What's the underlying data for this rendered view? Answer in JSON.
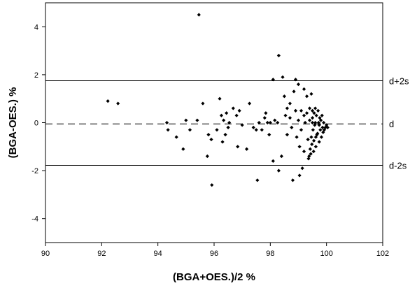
{
  "chart_data": {
    "type": "scatter",
    "title": "",
    "xlabel": "(BGA+OES.)/2 %",
    "ylabel": "(BGA-OES.) %",
    "xlim": [
      90,
      102
    ],
    "ylim": [
      -5,
      5
    ],
    "x_ticks": [
      "90",
      "92",
      "94",
      "96",
      "98",
      "100",
      "102"
    ],
    "y_ticks": [
      "4",
      "2",
      "0",
      "-2",
      "-4"
    ],
    "grid": false,
    "legend": "none",
    "reference_lines": [
      {
        "label": "d+2s",
        "y": 1.75,
        "style": "solid"
      },
      {
        "label": "d",
        "y": -0.05,
        "style": "dashed"
      },
      {
        "label": "d-2s",
        "y": -1.78,
        "style": "solid"
      }
    ],
    "marker_color": "#000000",
    "points": [
      [
        92.22,
        0.9
      ],
      [
        92.58,
        0.8
      ],
      [
        94.32,
        0.0
      ],
      [
        94.36,
        -0.3
      ],
      [
        94.66,
        -0.6
      ],
      [
        94.9,
        -1.1
      ],
      [
        95.0,
        0.1
      ],
      [
        95.14,
        -0.3
      ],
      [
        95.4,
        0.1
      ],
      [
        95.46,
        4.5
      ],
      [
        95.6,
        0.8
      ],
      [
        95.8,
        -0.5
      ],
      [
        95.76,
        -1.4
      ],
      [
        95.9,
        -0.7
      ],
      [
        95.92,
        -2.6
      ],
      [
        96.1,
        -0.3
      ],
      [
        96.2,
        1.0
      ],
      [
        96.26,
        0.3
      ],
      [
        96.3,
        -0.8
      ],
      [
        96.34,
        0.1
      ],
      [
        96.4,
        -0.5
      ],
      [
        96.44,
        0.4
      ],
      [
        96.5,
        -0.2
      ],
      [
        96.54,
        0.0
      ],
      [
        96.68,
        0.6
      ],
      [
        96.8,
        0.3
      ],
      [
        96.84,
        -1.0
      ],
      [
        96.9,
        0.5
      ],
      [
        97.0,
        -0.1
      ],
      [
        97.16,
        -1.1
      ],
      [
        97.26,
        0.8
      ],
      [
        97.4,
        -0.2
      ],
      [
        97.5,
        -0.3
      ],
      [
        97.54,
        -2.4
      ],
      [
        97.6,
        0.0
      ],
      [
        97.7,
        -0.3
      ],
      [
        97.8,
        0.2
      ],
      [
        97.84,
        0.4
      ],
      [
        97.9,
        0.0
      ],
      [
        97.96,
        -0.5
      ],
      [
        98.0,
        0.0
      ],
      [
        98.1,
        1.8
      ],
      [
        98.16,
        0.1
      ],
      [
        98.1,
        -1.6
      ],
      [
        98.3,
        2.8
      ],
      [
        98.26,
        0.0
      ],
      [
        98.3,
        -2.0
      ],
      [
        98.4,
        -1.4
      ],
      [
        98.44,
        1.9
      ],
      [
        98.5,
        1.1
      ],
      [
        98.54,
        0.3
      ],
      [
        98.6,
        0.6
      ],
      [
        98.6,
        -0.5
      ],
      [
        98.7,
        0.8
      ],
      [
        98.7,
        0.2
      ],
      [
        98.76,
        -0.2
      ],
      [
        98.8,
        -2.4
      ],
      [
        98.84,
        1.3
      ],
      [
        98.9,
        1.8
      ],
      [
        98.9,
        0.5
      ],
      [
        98.94,
        -0.6
      ],
      [
        99.0,
        1.6
      ],
      [
        99.0,
        0.1
      ],
      [
        99.04,
        -1.0
      ],
      [
        99.04,
        -2.2
      ],
      [
        99.1,
        0.5
      ],
      [
        99.1,
        -0.3
      ],
      [
        99.14,
        -1.9
      ],
      [
        99.2,
        1.4
      ],
      [
        99.2,
        0.3
      ],
      [
        99.24,
        0.0
      ],
      [
        99.2,
        -1.2
      ],
      [
        99.3,
        1.1
      ],
      [
        99.3,
        0.4
      ],
      [
        99.34,
        -0.7
      ],
      [
        99.36,
        -1.5
      ],
      [
        99.4,
        0.6
      ],
      [
        99.4,
        0.1
      ],
      [
        99.44,
        -1.3
      ],
      [
        99.46,
        1.2
      ],
      [
        99.5,
        0.5
      ],
      [
        99.5,
        0.2
      ],
      [
        99.52,
        -0.3
      ],
      [
        99.54,
        -1.2
      ],
      [
        99.56,
        0.4
      ],
      [
        99.58,
        -0.1
      ],
      [
        99.6,
        0.6
      ],
      [
        99.62,
        -1.0
      ],
      [
        99.64,
        0.3
      ],
      [
        99.66,
        -0.5
      ],
      [
        99.7,
        0.5
      ],
      [
        99.72,
        0.0
      ],
      [
        99.74,
        -0.8
      ],
      [
        99.76,
        0.2
      ],
      [
        99.78,
        -0.3
      ],
      [
        99.8,
        0.1
      ],
      [
        99.82,
        -0.6
      ],
      [
        99.84,
        0.3
      ],
      [
        99.86,
        -0.2
      ],
      [
        99.88,
        -0.4
      ],
      [
        99.9,
        0.0
      ],
      [
        99.92,
        -0.3
      ],
      [
        99.96,
        -0.2
      ],
      [
        100.0,
        -0.1
      ],
      [
        100.04,
        -0.2
      ],
      [
        99.38,
        -1.4
      ],
      [
        99.42,
        -1.1
      ],
      [
        99.48,
        -0.9
      ],
      [
        99.55,
        -0.75
      ],
      [
        99.62,
        -0.6
      ],
      [
        99.68,
        -0.45
      ],
      [
        99.74,
        -0.1
      ],
      [
        99.6,
        0.0
      ],
      [
        99.5,
        0.0
      ],
      [
        99.46,
        -0.6
      ]
    ]
  }
}
